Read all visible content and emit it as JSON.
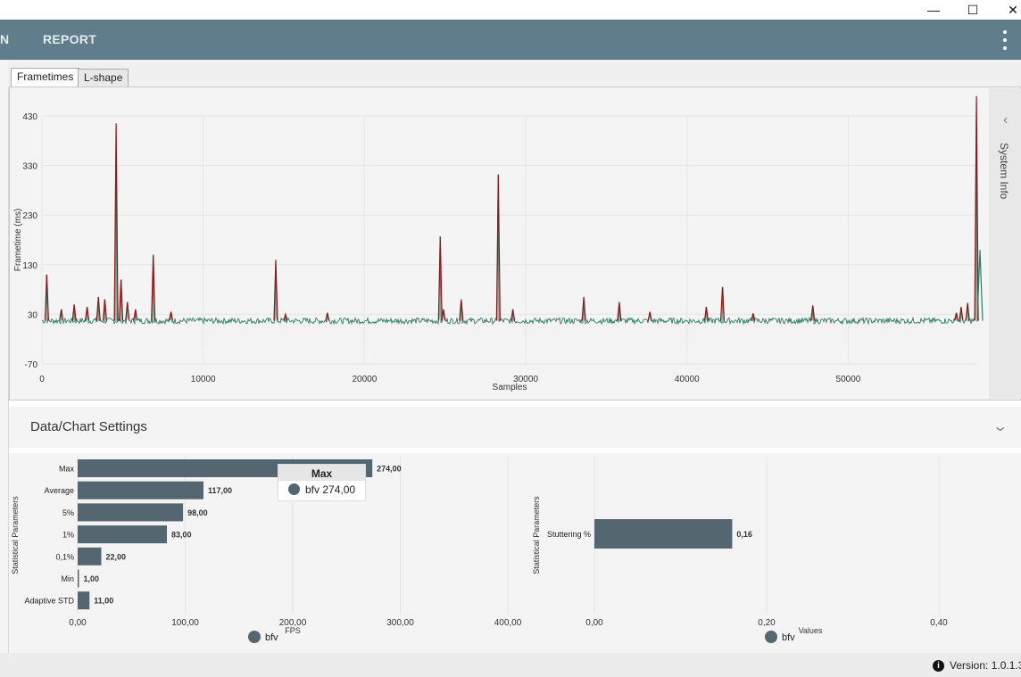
{
  "window": {
    "minimize_glyph": "—",
    "maximize_glyph": "☐",
    "close_glyph": "✕"
  },
  "appbar": {
    "nav_partial": "N",
    "nav_report": "REPORT",
    "menu_icon": "kebab-menu-icon",
    "color": "#607d8b"
  },
  "tabs": [
    {
      "label": "Frametimes",
      "active": true
    },
    {
      "label": "L-shape",
      "active": false
    }
  ],
  "side_panel": {
    "label": "System Info",
    "chevron": "‹"
  },
  "settings": {
    "title": "Data/Chart Settings",
    "chevron": "⌄"
  },
  "status": {
    "version": "Version: 1.0.1.3",
    "info_icon": "i"
  },
  "colors": {
    "bar": "#546770",
    "frametime_spike": "#8b1a1a",
    "frametime_base": "#2e7d62"
  },
  "chart_data": [
    {
      "type": "line",
      "title": "",
      "xlabel": "Samples",
      "ylabel": "Frametime (ms)",
      "xlim": [
        0,
        58000
      ],
      "ylim": [
        -70,
        430
      ],
      "xticks": [
        "0",
        "10000",
        "20000",
        "30000",
        "40000",
        "50000"
      ],
      "yticks": [
        "430",
        "330",
        "230",
        "130",
        "30",
        "-70"
      ],
      "baseline": 17,
      "spikes": [
        {
          "x": 300,
          "y": 110
        },
        {
          "x": 1200,
          "y": 40
        },
        {
          "x": 2000,
          "y": 50
        },
        {
          "x": 2800,
          "y": 45
        },
        {
          "x": 3500,
          "y": 65
        },
        {
          "x": 3900,
          "y": 60
        },
        {
          "x": 4600,
          "y": 415
        },
        {
          "x": 4900,
          "y": 100
        },
        {
          "x": 5300,
          "y": 55
        },
        {
          "x": 5800,
          "y": 40
        },
        {
          "x": 6900,
          "y": 150
        },
        {
          "x": 8000,
          "y": 35
        },
        {
          "x": 14500,
          "y": 140
        },
        {
          "x": 15100,
          "y": 30
        },
        {
          "x": 17700,
          "y": 33
        },
        {
          "x": 24700,
          "y": 187
        },
        {
          "x": 24900,
          "y": 40
        },
        {
          "x": 26000,
          "y": 60
        },
        {
          "x": 28300,
          "y": 312
        },
        {
          "x": 29200,
          "y": 40
        },
        {
          "x": 33600,
          "y": 65
        },
        {
          "x": 35800,
          "y": 55
        },
        {
          "x": 37700,
          "y": 35
        },
        {
          "x": 41200,
          "y": 45
        },
        {
          "x": 42200,
          "y": 85
        },
        {
          "x": 44100,
          "y": 32
        },
        {
          "x": 47800,
          "y": 48
        },
        {
          "x": 56700,
          "y": 33
        },
        {
          "x": 57000,
          "y": 45
        },
        {
          "x": 57400,
          "y": 53
        },
        {
          "x": 57950,
          "y": 470
        }
      ],
      "end_value": 160
    },
    {
      "type": "bar",
      "orientation": "horizontal",
      "categories": [
        "Max",
        "Average",
        "5%",
        "1%",
        "0,1%",
        "Min",
        "Adaptive STD"
      ],
      "values": [
        274.0,
        117.0,
        98.0,
        83.0,
        22.0,
        1.0,
        11.0
      ],
      "value_labels": [
        "274,00",
        "117,00",
        "98,00",
        "83,00",
        "22,00",
        "1,00",
        "11,00"
      ],
      "xlabel": "FPS",
      "ylabel": "Statistical Parameters",
      "xlim": [
        0,
        400
      ],
      "xticks": [
        "0,00",
        "100,00",
        "200,00",
        "300,00",
        "400,00"
      ],
      "legend": [
        "bfv"
      ],
      "tooltip": {
        "title": "Max",
        "series": "bfv",
        "value": "274,00"
      }
    },
    {
      "type": "bar",
      "orientation": "horizontal",
      "categories": [
        "Stuttering %"
      ],
      "values": [
        0.16
      ],
      "value_labels": [
        "0,16"
      ],
      "xlabel": "Values",
      "ylabel": "Statistical Parameters",
      "xlim": [
        0,
        0.4
      ],
      "xticks": [
        "0,00",
        "0,20",
        "0,40"
      ],
      "legend": [
        "bfv"
      ]
    }
  ]
}
